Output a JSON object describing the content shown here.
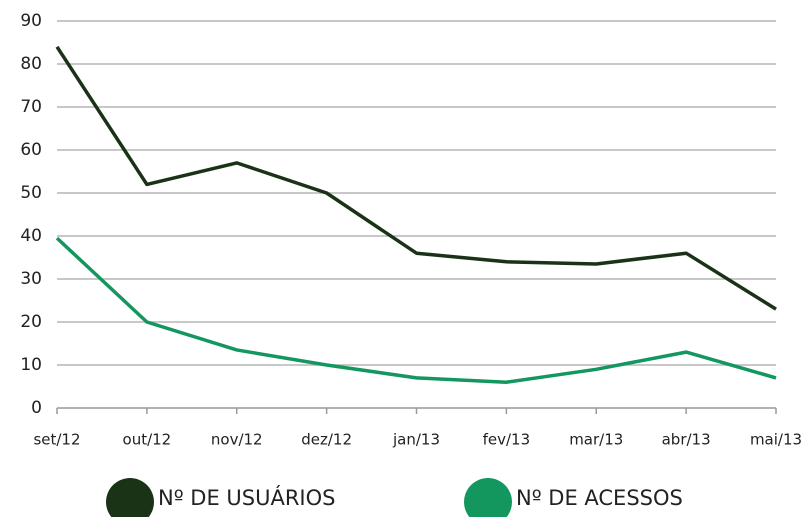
{
  "chart_data": {
    "type": "line",
    "categories": [
      "set/12",
      "out/12",
      "nov/12",
      "dez/12",
      "jan/13",
      "fev/13",
      "mar/13",
      "abr/13",
      "mai/13"
    ],
    "series": [
      {
        "name": "Nº DE USUÁRIOS",
        "color": "#1a3317",
        "values": [
          84,
          52,
          57,
          50,
          36,
          34,
          33.5,
          36,
          23
        ]
      },
      {
        "name": "Nº DE ACESSOS",
        "color": "#14975f",
        "values": [
          39.5,
          20,
          13.5,
          10,
          7,
          6,
          9,
          13,
          7
        ]
      }
    ],
    "ylim": [
      0,
      90
    ],
    "yticks": [
      0,
      10,
      20,
      30,
      40,
      50,
      60,
      70,
      80,
      90
    ],
    "grid": true
  }
}
